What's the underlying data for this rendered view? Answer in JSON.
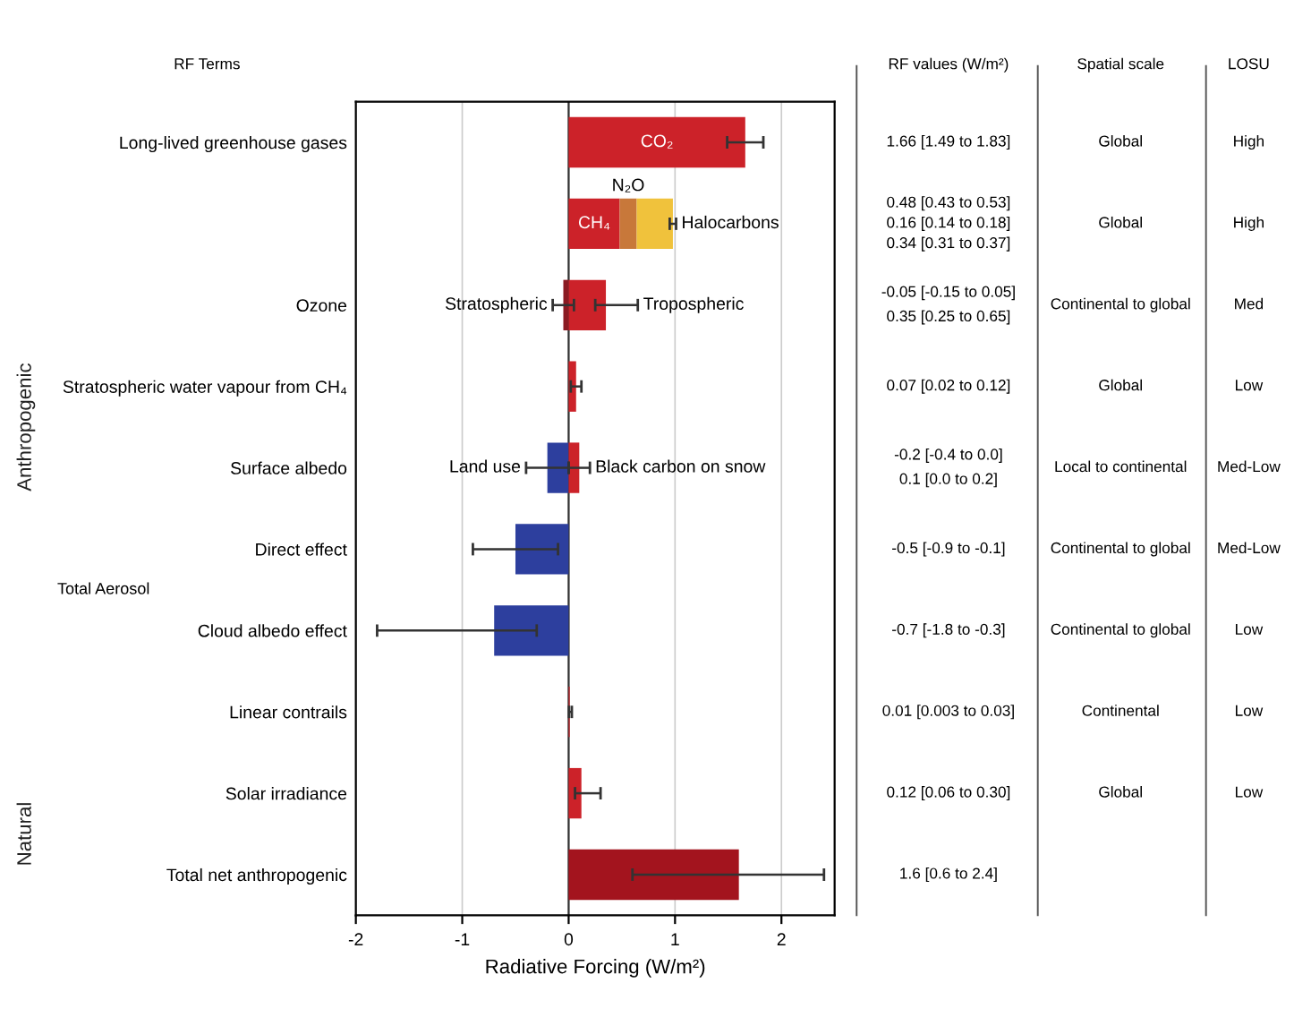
{
  "chart_data": {
    "type": "bar",
    "orientation": "horizontal",
    "stacked": true,
    "categories": [
      "Long-lived greenhouse gases",
      null,
      "Ozone",
      "Stratospheric water vapour from CH₄",
      "Surface albedo",
      "Direct effect",
      "Cloud albedo effect",
      "Linear contrails",
      "Solar irradiance",
      "Total net anthropogenic"
    ],
    "xlabel": "Radiative Forcing (W/m²)",
    "xlim": [
      -2,
      2.5
    ],
    "xticks": [
      -2,
      -1,
      0,
      1,
      2
    ],
    "grid": "x",
    "legend": false,
    "series": [
      {
        "name": "CO₂",
        "color": "#cc2229",
        "values": [
          1.66,
          null,
          null,
          null,
          null,
          null,
          null,
          null,
          null,
          null
        ],
        "errors": [
          [
            1.49,
            1.83
          ],
          null,
          null,
          null,
          null,
          null,
          null,
          null,
          null,
          null
        ]
      },
      {
        "name": "CH₄",
        "color": "#cc2229",
        "values": [
          null,
          0.48,
          null,
          null,
          null,
          null,
          null,
          null,
          null,
          null
        ]
      },
      {
        "name": "N₂O",
        "color": "#c8783a",
        "values": [
          null,
          0.16,
          null,
          null,
          null,
          null,
          null,
          null,
          null,
          null
        ],
        "base": [
          null,
          0.48,
          null,
          null,
          null,
          null,
          null,
          null,
          null,
          null
        ]
      },
      {
        "name": "Halocarbons",
        "color": "#f0c23c",
        "values": [
          null,
          0.34,
          null,
          null,
          null,
          null,
          null,
          null,
          null,
          null
        ],
        "base": [
          null,
          0.64,
          null,
          null,
          null,
          null,
          null,
          null,
          null,
          null
        ],
        "errors": [
          null,
          [
            0.95,
            1.01
          ],
          null,
          null,
          null,
          null,
          null,
          null,
          null,
          null
        ]
      },
      {
        "name": "Stratospheric",
        "color": "#8b1a22",
        "values": [
          null,
          null,
          -0.05,
          null,
          null,
          null,
          null,
          null,
          null,
          null
        ],
        "errors": [
          null,
          null,
          [
            -0.15,
            0.05
          ],
          null,
          null,
          null,
          null,
          null,
          null,
          null
        ]
      },
      {
        "name": "Tropospheric",
        "color": "#cc2229",
        "values": [
          null,
          null,
          0.35,
          null,
          null,
          null,
          null,
          null,
          null,
          null
        ],
        "errors": [
          null,
          null,
          [
            0.25,
            0.65
          ],
          null,
          null,
          null,
          null,
          null,
          null,
          null
        ]
      },
      {
        "name": "Land use",
        "color": "#2d3f9e",
        "values": [
          null,
          null,
          null,
          null,
          -0.2,
          null,
          null,
          null,
          null,
          null
        ],
        "errors": [
          null,
          null,
          null,
          null,
          [
            -0.4,
            0.0
          ],
          null,
          null,
          null,
          null,
          null
        ]
      },
      {
        "name": "Black carbon on snow",
        "color": "#cc2229",
        "values": [
          null,
          null,
          null,
          null,
          0.1,
          null,
          null,
          null,
          null,
          null
        ],
        "errors": [
          null,
          null,
          null,
          null,
          [
            0.0,
            0.2
          ],
          null,
          null,
          null,
          null,
          null
        ]
      },
      {
        "colors": [
          "#cc2229",
          "#cc2229",
          "#cc2229",
          "#cc2229",
          "#cc2229",
          "#2d3f9e",
          "#2d3f9e",
          "#cc2229",
          "#cc2229",
          "#a3141e"
        ],
        "values": [
          null,
          null,
          null,
          0.07,
          null,
          -0.5,
          -0.7,
          0.01,
          0.12,
          1.6
        ],
        "errors": [
          null,
          null,
          null,
          [
            0.02,
            0.12
          ],
          null,
          [
            -0.9,
            -0.1
          ],
          [
            -1.8,
            -0.3
          ],
          [
            0.003,
            0.03
          ],
          [
            0.06,
            0.3
          ],
          [
            0.6,
            2.4
          ]
        ]
      }
    ],
    "annotations": [
      "RF Terms",
      "RF values (W/m²)",
      "Spatial scale",
      "LOSU",
      "1.66 [1.49 to 1.83]",
      "0.48 [0.43 to 0.53]",
      "0.16 [0.14 to 0.18]",
      "0.34 [0.31 to 0.37]",
      "Global",
      "High",
      "Global",
      "High",
      "-0.05 [-0.15 to 0.05]",
      "0.35 [0.25 to 0.65]",
      "Continental to global",
      "Med",
      "0.07 [0.02 to 0.12]",
      "Global",
      "Low",
      "-0.2 [-0.4 to 0.0]",
      "0.1 [0.0 to 0.2]",
      "Local to continental",
      "Med-Low",
      "-0.5 [-0.9 to -0.1]",
      "Continental to global",
      "Med-Low",
      "-0.7 [-1.8 to -0.3]",
      "Continental to global",
      "Low",
      "0.01 [0.003 to 0.03]",
      "Continental",
      "Low",
      "0.12 [0.06 to 0.30]",
      "Global",
      "Low",
      "1.6 [0.6 to 2.4]",
      "Total Aerosol",
      "Anthropogenic",
      "Natural"
    ]
  }
}
